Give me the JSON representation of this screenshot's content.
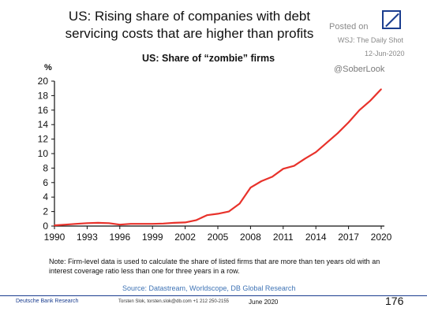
{
  "headline": {
    "line1": "US: Rising share of companies with debt",
    "line2": "servicing costs that are higher than profits"
  },
  "watermark": {
    "posted": "Posted on",
    "source": "WSJ: The Daily Shot",
    "date": "12-Jun-2020",
    "handle": "@SoberLook",
    "logo_icon": "deutsche-bank-logo-icon",
    "logo_color": "#1a3d8f"
  },
  "chart_data": {
    "type": "line",
    "title": "US: Share of “zombie” firms",
    "ylabel": "%",
    "xlabel": "",
    "ylim": [
      0,
      20
    ],
    "xlim": [
      1990,
      2020
    ],
    "yticks": [
      0,
      2,
      4,
      6,
      8,
      10,
      12,
      14,
      16,
      18,
      20
    ],
    "xticks": [
      1990,
      1993,
      1996,
      1999,
      2002,
      2005,
      2008,
      2011,
      2014,
      2017,
      2020
    ],
    "grid": false,
    "line_color": "#e8322b",
    "series": [
      {
        "x": [
          1990,
          1991,
          1992,
          1993,
          1994,
          1995,
          1996,
          1997,
          1998,
          1999,
          2000,
          2001,
          2002,
          2003,
          2004,
          2005,
          2006,
          2007,
          2008,
          2009,
          2010,
          2011,
          2012,
          2013,
          2014,
          2015,
          2016,
          2017,
          2018,
          2019,
          2020
        ],
        "values": [
          0.1,
          0.2,
          0.3,
          0.4,
          0.45,
          0.4,
          0.2,
          0.3,
          0.3,
          0.3,
          0.35,
          0.45,
          0.5,
          0.8,
          1.5,
          1.7,
          2.0,
          3.1,
          5.3,
          6.2,
          6.8,
          7.9,
          8.3,
          9.3,
          10.2,
          11.5,
          12.8,
          14.3,
          16.0,
          17.3,
          18.9
        ]
      }
    ]
  },
  "note": "Note: Firm-level data is used to calculate the share of listed firms that are more than ten years old with an interest coverage ratio less than one for three years in a row.",
  "source": "Source: Datastream, Worldscope, DB Global Research",
  "footer": {
    "org": "Deutsche Bank Research",
    "contact": "Torsten Slok, torsten.slok@db.com  +1 212 250-2155",
    "month": "June 2020",
    "page": "176"
  }
}
